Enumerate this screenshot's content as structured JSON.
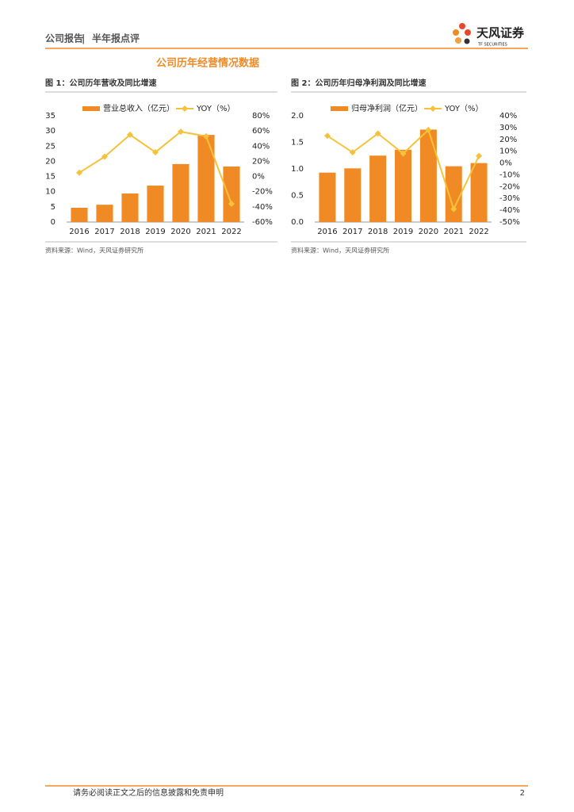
{
  "header": {
    "report_type": "公司报告",
    "report_subtype": "半年报点评",
    "logo_name": "天风证券",
    "logo_sub": "TF SECURITIES"
  },
  "section_title": "公司历年经营情况数据",
  "chart_data": [
    {
      "type": "bar-line",
      "title": "图 1：公司历年营收及同比增速",
      "source": "资料来源：Wind，天风证券研究所",
      "categories": [
        "2016",
        "2017",
        "2018",
        "2019",
        "2020",
        "2021",
        "2022"
      ],
      "series": [
        {
          "name": "营业总收入（亿元）",
          "color": "#f08a24",
          "type": "bar",
          "values": [
            4.7,
            5.7,
            9.4,
            12.0,
            19.1,
            28.7,
            18.3
          ]
        },
        {
          "name": "YOY（%）",
          "color": "#f7c23b",
          "type": "line",
          "axis": "y2",
          "values": [
            5,
            26,
            55,
            32,
            59,
            53,
            -36
          ]
        }
      ],
      "ylim": [
        0,
        35
      ],
      "yticks": [
        0,
        5,
        10,
        15,
        20,
        25,
        30,
        35
      ],
      "y2lim": [
        -60,
        80
      ],
      "y2ticks": [
        {
          "value": -60,
          "label": "-60%"
        },
        {
          "value": -40,
          "label": "-40%"
        },
        {
          "value": -20,
          "label": "-20%"
        },
        {
          "value": 0,
          "label": "0%"
        },
        {
          "value": 20,
          "label": "20%"
        },
        {
          "value": 40,
          "label": "40%"
        },
        {
          "value": 60,
          "label": "60%"
        },
        {
          "value": 80,
          "label": "80%"
        }
      ]
    },
    {
      "type": "bar-line",
      "title": "图 2：公司历年归母净利润及同比增速",
      "source": "资料来源：Wind，天风证券研究所",
      "categories": [
        "2016",
        "2017",
        "2018",
        "2019",
        "2020",
        "2021",
        "2022"
      ],
      "series": [
        {
          "name": "归母净利润（亿元）",
          "color": "#f08a24",
          "type": "bar",
          "values": [
            0.93,
            1.01,
            1.25,
            1.36,
            1.74,
            1.05,
            1.11
          ]
        },
        {
          "name": "YOY（%）",
          "color": "#f7c23b",
          "type": "line",
          "axis": "y2",
          "values": [
            23,
            9,
            25,
            8,
            28,
            -39,
            6
          ]
        }
      ],
      "ylim": [
        0,
        2
      ],
      "yticks": [
        {
          "value": 0,
          "label": "0.0"
        },
        0.5,
        {
          "value": 1,
          "label": "1.0"
        },
        1.5,
        {
          "value": 2,
          "label": "2.0"
        }
      ],
      "y2lim": [
        -50,
        40
      ],
      "y2ticks": [
        {
          "value": -50,
          "label": "-50%"
        },
        {
          "value": -40,
          "label": "-40%"
        },
        {
          "value": -30,
          "label": "-30%"
        },
        {
          "value": -20,
          "label": "-20%"
        },
        {
          "value": -10,
          "label": "-10%"
        },
        {
          "value": 0,
          "label": "0%"
        },
        {
          "value": 10,
          "label": "10%"
        },
        {
          "value": 20,
          "label": "20%"
        },
        {
          "value": 30,
          "label": "30%"
        },
        {
          "value": 40,
          "label": "40%"
        }
      ]
    }
  ],
  "footer": {
    "disclaimer": "请务必阅读正文之后的信息披露和免责申明",
    "page": "2"
  }
}
